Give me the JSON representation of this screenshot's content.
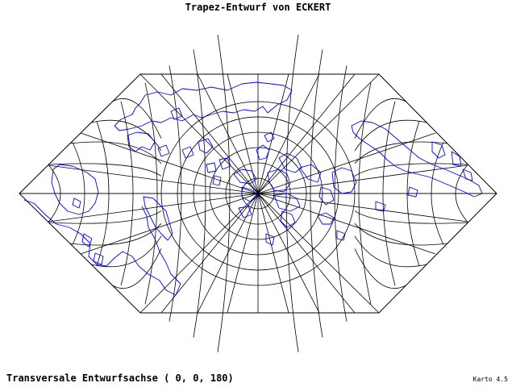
{
  "title": "Trapez-Entwurf von ECKERT",
  "subtitle": "Transversale Entwurfsachse ( 0, 0, 180)",
  "credit": "Karto 4.5",
  "colors": {
    "graticule": "#000000",
    "coastline": "#0000ff",
    "background": "#ffffff"
  }
}
